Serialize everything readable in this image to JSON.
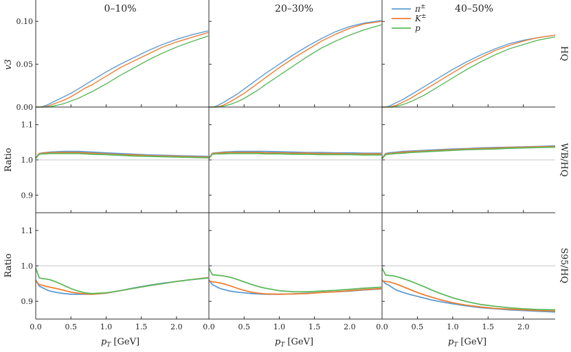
{
  "chart_data": {
    "type": "line",
    "figure": "v3 of identified hadrons and ratios vs pT",
    "columns": [
      "0–10%",
      "20–30%",
      "40–50%"
    ],
    "rows": [
      {
        "label": "HQ",
        "ylabel": "v3",
        "ylim": [
          0.0,
          0.125
        ],
        "yticks": [
          "0.00",
          "0.05",
          "0.10"
        ],
        "yticks_values": [
          0.0,
          0.05,
          0.1
        ],
        "reference": null
      },
      {
        "label": "WB/HQ",
        "ylabel": "Ratio",
        "ylim": [
          0.85,
          1.15
        ],
        "yticks": [
          "0.9",
          "1.0",
          "1.1"
        ],
        "yticks_values": [
          0.9,
          1.0,
          1.1
        ],
        "reference": 1.0
      },
      {
        "label": "S95/HQ",
        "ylabel": "Ratio",
        "ylim": [
          0.85,
          1.15
        ],
        "yticks": [
          "0.9",
          "1.0",
          "1.1"
        ],
        "yticks_values": [
          0.9,
          1.0,
          1.1
        ],
        "reference": 1.0
      }
    ],
    "xlabel": "p_T [GeV]",
    "xlabel_parts": {
      "p": "p",
      "sub": "T",
      "unit": " [GeV]"
    },
    "xlim": [
      0.0,
      2.45
    ],
    "xticks": [
      "0.0",
      "0.5",
      "1.0",
      "1.5",
      "2.0"
    ],
    "xticks_values": [
      0.0,
      0.5,
      1.0,
      1.5,
      2.0
    ],
    "legend": [
      {
        "name": "π±",
        "base": "π",
        "sup": "±",
        "color": "#5b9bd5"
      },
      {
        "name": "K±",
        "base": "K",
        "sup": "±",
        "color": "#ed7d31"
      },
      {
        "name": "p",
        "base": "p",
        "sup": "",
        "color": "#5cb85c"
      }
    ],
    "x": [
      0.0,
      0.05,
      0.1,
      0.15,
      0.2,
      0.3,
      0.4,
      0.5,
      0.6,
      0.7,
      0.8,
      1.0,
      1.2,
      1.4,
      1.6,
      1.8,
      2.0,
      2.2,
      2.45
    ],
    "panels": [
      [
        {
          "series": [
            {
              "name": "π±",
              "values": [
                0.0,
                0.0,
                0.0008,
                0.002,
                0.004,
                0.008,
                0.012,
                0.016,
                0.021,
                0.026,
                0.031,
                0.041,
                0.05,
                0.058,
                0.066,
                0.073,
                0.079,
                0.084,
                0.089
              ]
            },
            {
              "name": "K±",
              "values": [
                0.0,
                0.0,
                0.0,
                0.0008,
                0.002,
                0.005,
                0.008,
                0.012,
                0.017,
                0.022,
                0.026,
                0.036,
                0.046,
                0.054,
                0.062,
                0.07,
                0.076,
                0.081,
                0.087
              ]
            },
            {
              "name": "p",
              "values": [
                0.0,
                0.0,
                0.0,
                0.0,
                0.0005,
                0.002,
                0.004,
                0.007,
                0.01,
                0.014,
                0.018,
                0.027,
                0.037,
                0.046,
                0.055,
                0.063,
                0.07,
                0.076,
                0.083
              ]
            }
          ]
        },
        {
          "series": [
            {
              "name": "π±",
              "values": [
                0.0,
                0.0,
                0.001,
                0.003,
                0.005,
                0.01,
                0.015,
                0.021,
                0.027,
                0.033,
                0.039,
                0.05,
                0.061,
                0.071,
                0.08,
                0.088,
                0.094,
                0.098,
                0.101
              ]
            },
            {
              "name": "K±",
              "values": [
                0.0,
                0.0,
                0.0,
                0.001,
                0.002,
                0.006,
                0.011,
                0.016,
                0.022,
                0.028,
                0.034,
                0.046,
                0.057,
                0.067,
                0.077,
                0.085,
                0.092,
                0.097,
                0.1
              ]
            },
            {
              "name": "p",
              "values": [
                0.0,
                0.0,
                0.0,
                0.0,
                0.001,
                0.003,
                0.006,
                0.01,
                0.015,
                0.02,
                0.026,
                0.037,
                0.048,
                0.059,
                0.069,
                0.077,
                0.084,
                0.09,
                0.096
              ]
            }
          ]
        },
        {
          "series": [
            {
              "name": "π±",
              "values": [
                0.0,
                0.0,
                0.001,
                0.003,
                0.005,
                0.009,
                0.014,
                0.019,
                0.024,
                0.029,
                0.034,
                0.044,
                0.053,
                0.061,
                0.068,
                0.074,
                0.078,
                0.081,
                0.084
              ]
            },
            {
              "name": "K±",
              "values": [
                0.0,
                0.0,
                0.0,
                0.001,
                0.002,
                0.006,
                0.01,
                0.015,
                0.02,
                0.025,
                0.03,
                0.04,
                0.05,
                0.058,
                0.066,
                0.072,
                0.077,
                0.081,
                0.084
              ]
            },
            {
              "name": "p",
              "values": [
                0.0,
                0.0,
                0.0,
                0.0,
                0.001,
                0.003,
                0.006,
                0.01,
                0.014,
                0.019,
                0.024,
                0.034,
                0.044,
                0.053,
                0.061,
                0.068,
                0.073,
                0.078,
                0.082
              ]
            }
          ]
        }
      ],
      [
        {
          "series": [
            {
              "name": "π±",
              "values": [
                1.005,
                1.018,
                1.02,
                1.021,
                1.022,
                1.023,
                1.024,
                1.024,
                1.024,
                1.023,
                1.022,
                1.02,
                1.018,
                1.016,
                1.014,
                1.013,
                1.012,
                1.011,
                1.01
              ]
            },
            {
              "name": "K±",
              "values": [
                1.005,
                1.018,
                1.019,
                1.02,
                1.02,
                1.021,
                1.021,
                1.021,
                1.021,
                1.02,
                1.019,
                1.017,
                1.015,
                1.014,
                1.012,
                1.011,
                1.01,
                1.009,
                1.008
              ]
            },
            {
              "name": "p",
              "values": [
                1.004,
                1.016,
                1.017,
                1.017,
                1.018,
                1.018,
                1.018,
                1.018,
                1.018,
                1.017,
                1.016,
                1.015,
                1.013,
                1.011,
                1.01,
                1.009,
                1.008,
                1.007,
                1.006
              ]
            }
          ]
        },
        {
          "series": [
            {
              "name": "π±",
              "values": [
                1.005,
                1.019,
                1.02,
                1.021,
                1.022,
                1.023,
                1.024,
                1.024,
                1.024,
                1.024,
                1.024,
                1.023,
                1.022,
                1.021,
                1.021,
                1.02,
                1.02,
                1.019,
                1.019
              ]
            },
            {
              "name": "K±",
              "values": [
                1.005,
                1.018,
                1.019,
                1.02,
                1.02,
                1.021,
                1.021,
                1.021,
                1.021,
                1.021,
                1.02,
                1.02,
                1.019,
                1.019,
                1.018,
                1.018,
                1.017,
                1.017,
                1.017
              ]
            },
            {
              "name": "p",
              "values": [
                1.004,
                1.016,
                1.017,
                1.017,
                1.017,
                1.018,
                1.018,
                1.018,
                1.018,
                1.018,
                1.017,
                1.017,
                1.016,
                1.016,
                1.015,
                1.015,
                1.015,
                1.014,
                1.014
              ]
            }
          ]
        },
        {
          "series": [
            {
              "name": "π±",
              "values": [
                1.004,
                1.018,
                1.02,
                1.021,
                1.022,
                1.024,
                1.025,
                1.026,
                1.027,
                1.028,
                1.029,
                1.031,
                1.032,
                1.034,
                1.035,
                1.036,
                1.037,
                1.038,
                1.04
              ]
            },
            {
              "name": "K±",
              "values": [
                1.004,
                1.017,
                1.018,
                1.019,
                1.02,
                1.022,
                1.023,
                1.024,
                1.025,
                1.026,
                1.027,
                1.029,
                1.031,
                1.032,
                1.033,
                1.035,
                1.036,
                1.037,
                1.038
              ]
            },
            {
              "name": "p",
              "values": [
                1.003,
                1.015,
                1.016,
                1.017,
                1.018,
                1.019,
                1.021,
                1.022,
                1.023,
                1.024,
                1.025,
                1.027,
                1.029,
                1.03,
                1.031,
                1.033,
                1.034,
                1.035,
                1.036
              ]
            }
          ]
        }
      ],
      [
        {
          "series": [
            {
              "name": "π±",
              "values": [
                0.96,
                0.943,
                0.938,
                0.933,
                0.929,
                0.925,
                0.922,
                0.92,
                0.92,
                0.92,
                0.92,
                0.923,
                0.93,
                0.938,
                0.945,
                0.951,
                0.956,
                0.961,
                0.966
              ]
            },
            {
              "name": "K±",
              "values": [
                0.958,
                0.947,
                0.945,
                0.942,
                0.94,
                0.936,
                0.931,
                0.926,
                0.923,
                0.921,
                0.92,
                0.923,
                0.93,
                0.937,
                0.944,
                0.95,
                0.956,
                0.961,
                0.967
              ]
            },
            {
              "name": "p",
              "values": [
                0.994,
                0.966,
                0.964,
                0.963,
                0.961,
                0.954,
                0.945,
                0.936,
                0.929,
                0.924,
                0.922,
                0.924,
                0.93,
                0.937,
                0.944,
                0.95,
                0.956,
                0.961,
                0.966
              ]
            }
          ]
        },
        {
          "series": [
            {
              "name": "π±",
              "values": [
                0.96,
                0.947,
                0.942,
                0.937,
                0.934,
                0.929,
                0.926,
                0.924,
                0.922,
                0.921,
                0.92,
                0.92,
                0.921,
                0.923,
                0.925,
                0.927,
                0.929,
                0.932,
                0.935
              ]
            },
            {
              "name": "K±",
              "values": [
                0.958,
                0.955,
                0.954,
                0.952,
                0.95,
                0.944,
                0.937,
                0.931,
                0.926,
                0.923,
                0.921,
                0.92,
                0.921,
                0.922,
                0.925,
                0.927,
                0.93,
                0.933,
                0.936
              ]
            },
            {
              "name": "p",
              "values": [
                0.994,
                0.975,
                0.974,
                0.973,
                0.972,
                0.968,
                0.962,
                0.955,
                0.948,
                0.942,
                0.937,
                0.93,
                0.927,
                0.927,
                0.929,
                0.931,
                0.934,
                0.937,
                0.94
              ]
            }
          ]
        },
        {
          "series": [
            {
              "name": "π±",
              "values": [
                0.96,
                0.95,
                0.945,
                0.938,
                0.932,
                0.925,
                0.919,
                0.914,
                0.909,
                0.904,
                0.9,
                0.893,
                0.887,
                0.882,
                0.879,
                0.876,
                0.874,
                0.872,
                0.87
              ]
            },
            {
              "name": "K±",
              "values": [
                0.958,
                0.956,
                0.955,
                0.952,
                0.949,
                0.941,
                0.933,
                0.925,
                0.918,
                0.912,
                0.906,
                0.896,
                0.889,
                0.884,
                0.88,
                0.878,
                0.876,
                0.874,
                0.873
              ]
            },
            {
              "name": "p",
              "values": [
                0.994,
                0.974,
                0.973,
                0.972,
                0.97,
                0.964,
                0.957,
                0.949,
                0.941,
                0.932,
                0.924,
                0.91,
                0.899,
                0.891,
                0.886,
                0.882,
                0.879,
                0.877,
                0.876
              ]
            }
          ]
        }
      ]
    ]
  }
}
